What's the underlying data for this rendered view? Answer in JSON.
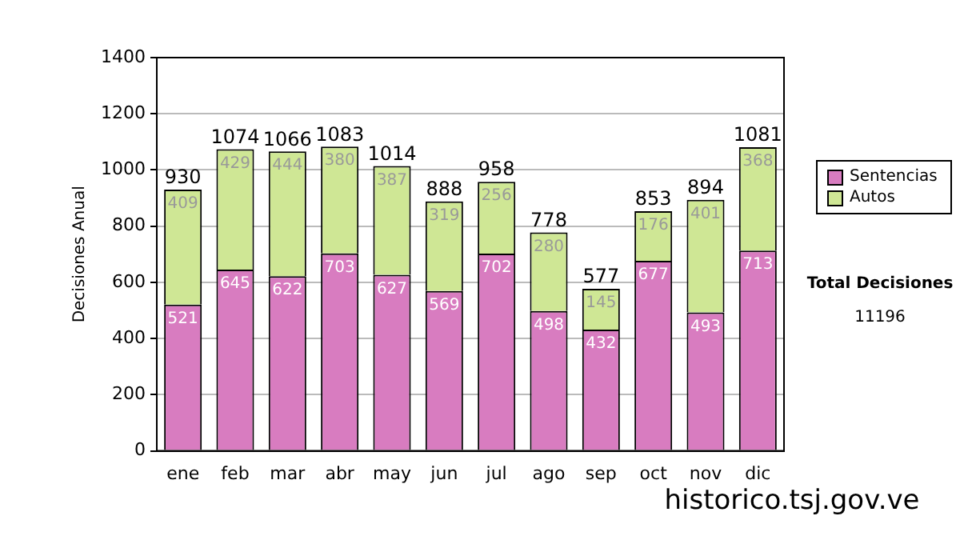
{
  "chart_data": {
    "type": "bar",
    "stacked": true,
    "ylabel": "Decisiones Anual",
    "categories": [
      "ene",
      "feb",
      "mar",
      "abr",
      "may",
      "jun",
      "jul",
      "ago",
      "sep",
      "oct",
      "nov",
      "dic"
    ],
    "series": [
      {
        "name": "Sentencias",
        "color": "#d87cc0",
        "values": [
          521,
          645,
          622,
          703,
          627,
          569,
          702,
          498,
          432,
          677,
          493,
          713
        ]
      },
      {
        "name": "Autos",
        "color": "#cfe795",
        "values": [
          409,
          429,
          444,
          380,
          387,
          319,
          256,
          280,
          145,
          176,
          401,
          368
        ]
      }
    ],
    "totals": [
      "930",
      "1074",
      "1066",
      "1083",
      "1014",
      "888",
      "958",
      "778",
      "577",
      "853",
      "894",
      "1081"
    ],
    "data_labels": true,
    "ylim": [
      0,
      1400
    ],
    "yticks": [
      0,
      200,
      400,
      600,
      800,
      1000,
      1200,
      1400
    ],
    "grid": "y",
    "legend": "right",
    "annotations": [
      "Total Decisiones",
      "11196",
      "historico.tsj.gov.ve"
    ]
  }
}
